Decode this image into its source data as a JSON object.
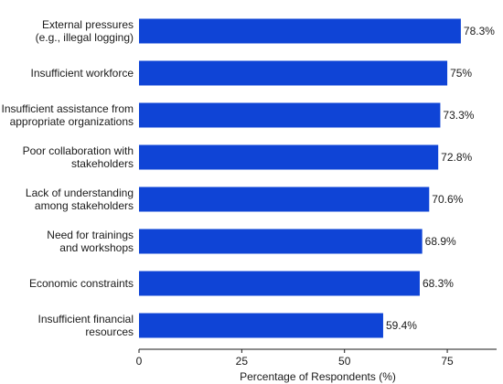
{
  "chart_data": {
    "type": "bar",
    "orientation": "horizontal",
    "categories": [
      [
        "External pressures",
        "(e.g., illegal logging)"
      ],
      [
        "Insufficient workforce"
      ],
      [
        "Insufficient assistance from",
        "appropriate organizations"
      ],
      [
        "Poor collaboration with",
        "stakeholders"
      ],
      [
        "Lack of understanding",
        "among stakeholders"
      ],
      [
        "Need for trainings",
        "and workshops"
      ],
      [
        "Economic constraints"
      ],
      [
        "Insufficient financial",
        "resources"
      ]
    ],
    "values": [
      78.3,
      75,
      73.3,
      72.8,
      70.6,
      68.9,
      68.3,
      59.4
    ],
    "value_labels": [
      "78.3%",
      "75%",
      "73.3%",
      "72.8%",
      "70.6%",
      "68.9%",
      "68.3%",
      "59.4%"
    ],
    "xlabel": "Percentage of Respondents (%)",
    "ylabel": "",
    "xlim": [
      0,
      87
    ],
    "xticks": [
      0,
      25,
      50,
      75
    ],
    "grid": false,
    "bar_color": "#0f44d6"
  }
}
